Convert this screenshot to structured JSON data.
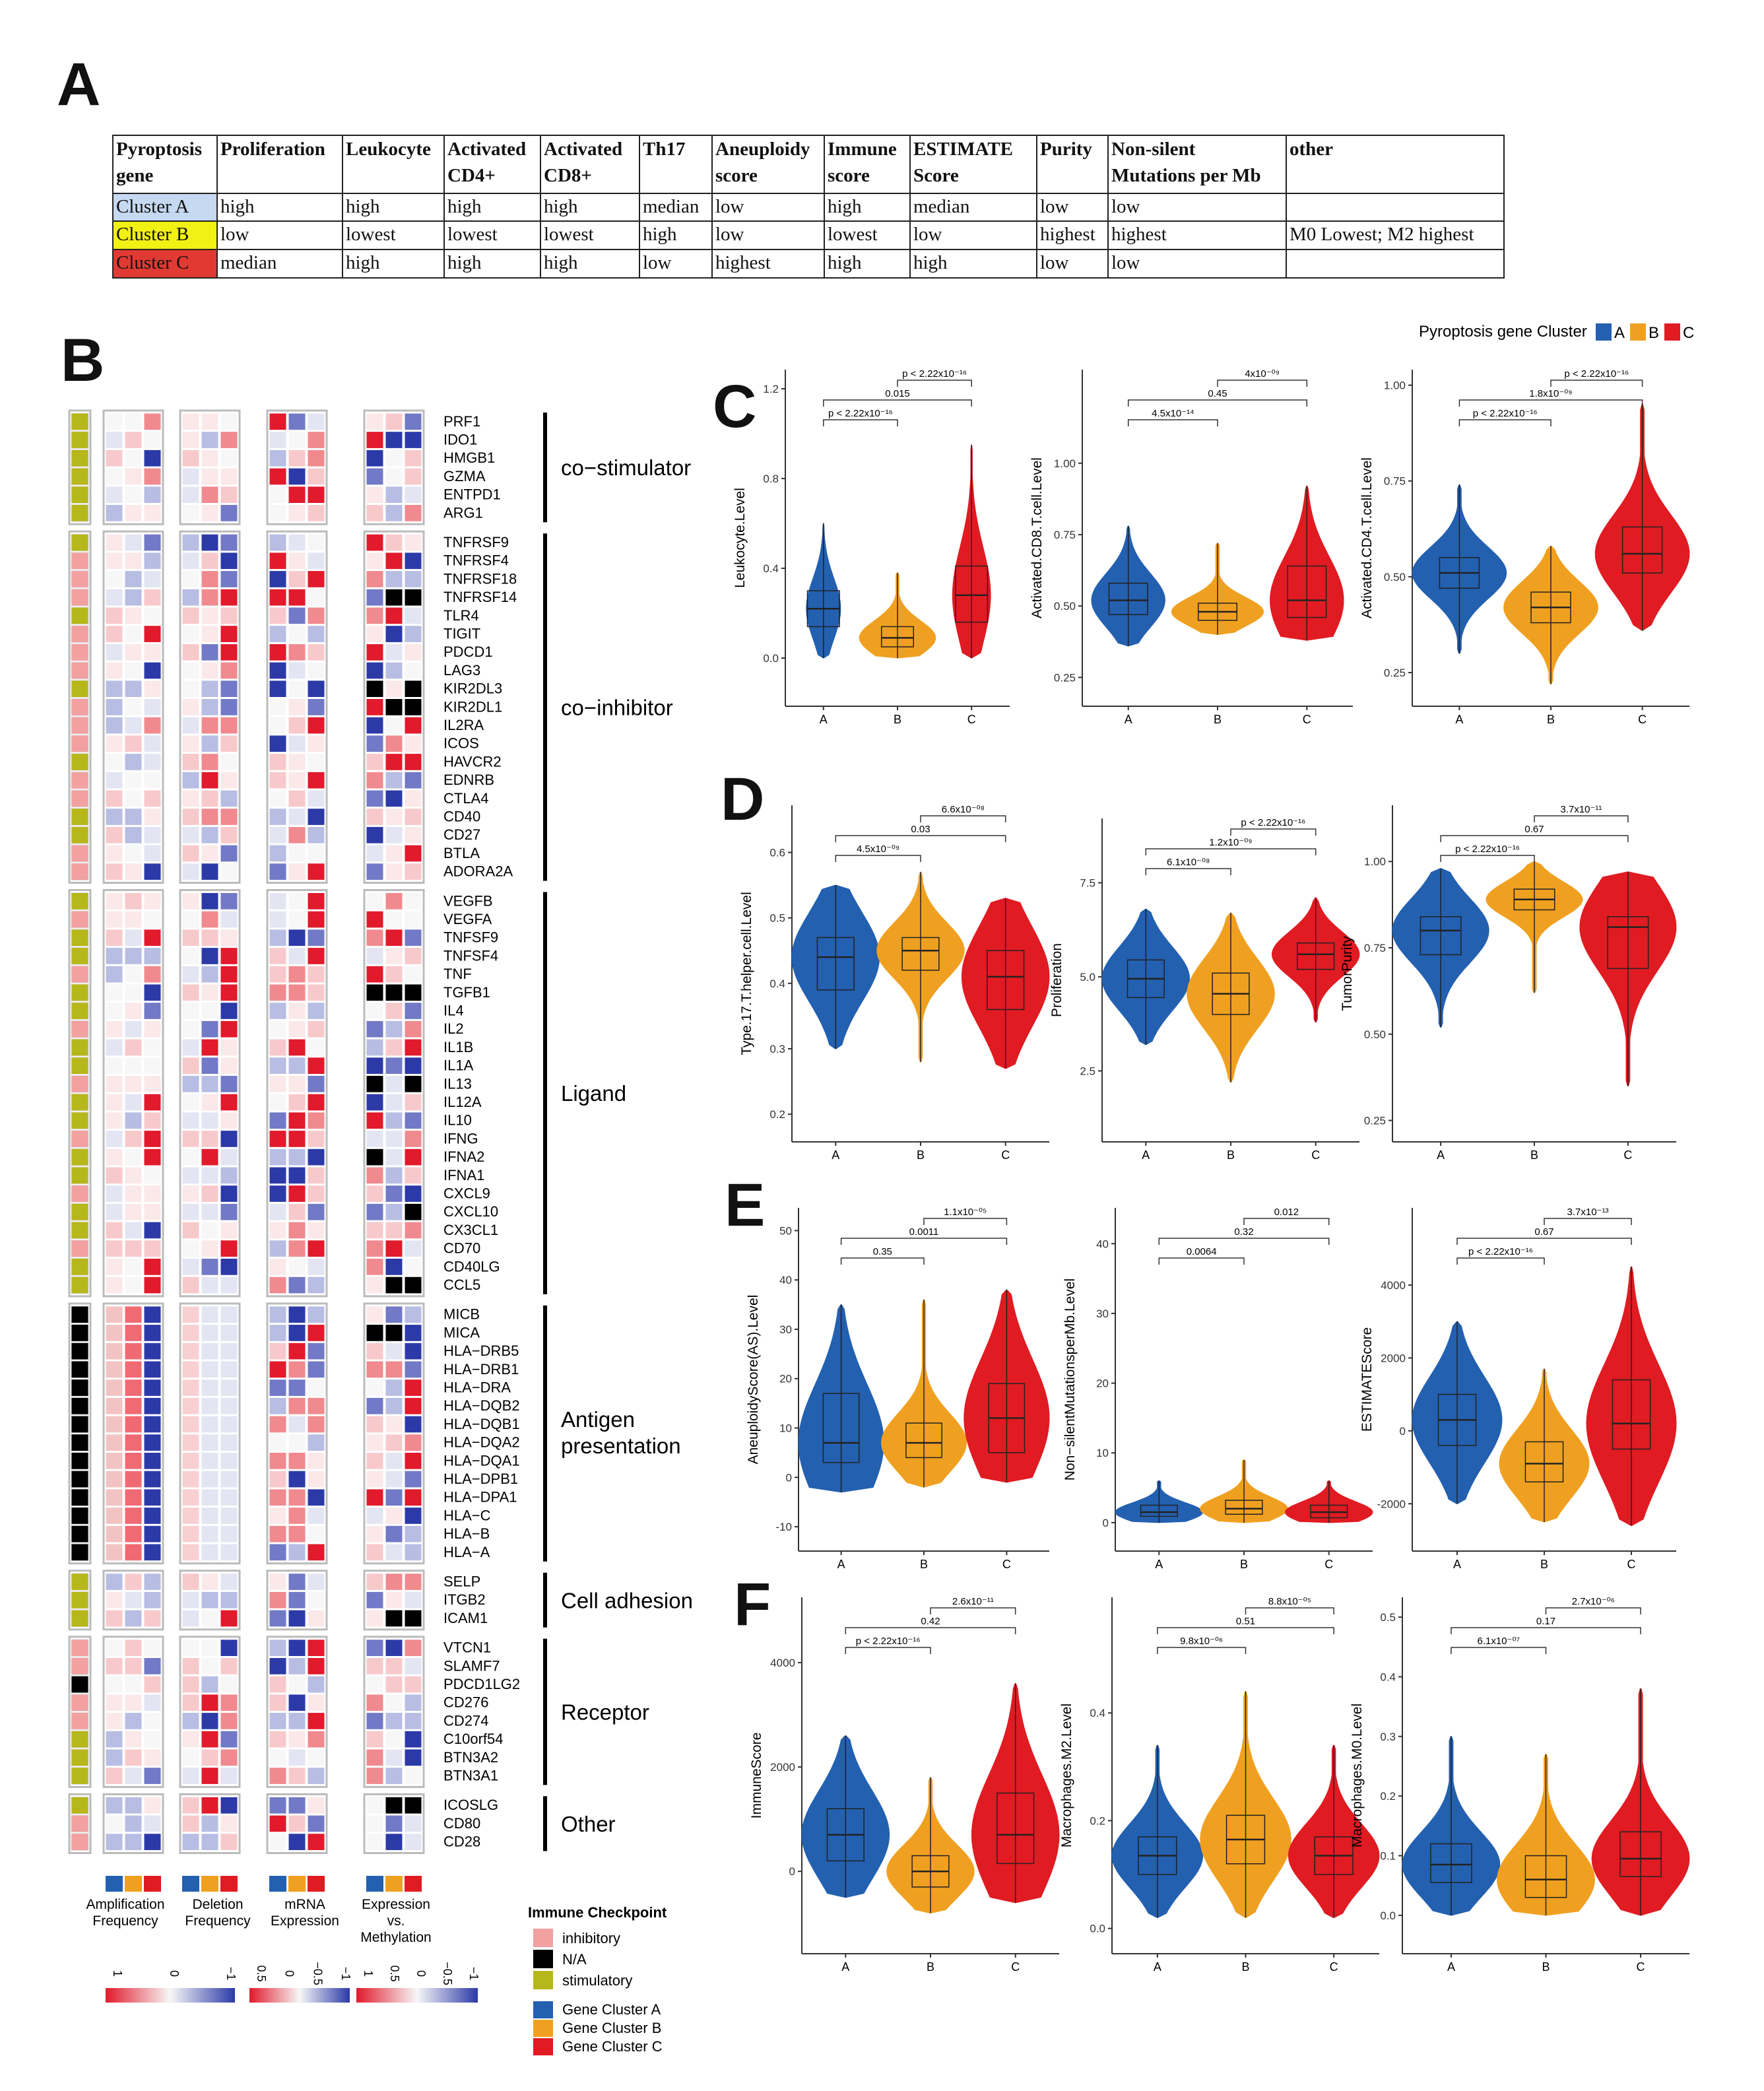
{
  "panel_labels": {
    "a": "A",
    "b": "B",
    "c": "C",
    "d": "D",
    "e": "E",
    "f": "F"
  },
  "table": {
    "headers": [
      [
        "Pyroptosis",
        "gene"
      ],
      [
        "Proliferation",
        ""
      ],
      [
        "Leukocyte",
        ""
      ],
      [
        "Activated",
        "CD4+"
      ],
      [
        "Activated",
        "CD8+"
      ],
      [
        "Th17",
        ""
      ],
      [
        "Aneuploidy",
        "score"
      ],
      [
        "Immune",
        "score"
      ],
      [
        "ESTIMATE",
        "Score"
      ],
      [
        "Purity",
        ""
      ],
      [
        "Non-silent",
        "Mutations per Mb"
      ],
      [
        "other",
        ""
      ]
    ],
    "rows": [
      {
        "color": "#c5d9f0",
        "cells": [
          "Cluster A",
          "high",
          "high",
          "high",
          "high",
          "median",
          "low",
          "high",
          "median",
          "low",
          "low",
          ""
        ]
      },
      {
        "color": "#f1f114",
        "cells": [
          "Cluster B",
          "low",
          "lowest",
          "lowest",
          "lowest",
          "high",
          "low",
          "lowest",
          "low",
          "highest",
          "highest",
          "M0 Lowest; M2 highest"
        ]
      },
      {
        "color": "#e03a32",
        "cells": [
          "Cluster C",
          "median",
          "high",
          "high",
          "high",
          "low",
          "highest",
          "high",
          "high",
          "low",
          "low",
          ""
        ]
      }
    ]
  },
  "heatmap": {
    "groups": [
      {
        "name": "co−stimulator",
        "genes": [
          "PRF1",
          "IDO1",
          "HMGB1",
          "GZMA",
          "ENTPD1",
          "ARG1"
        ]
      },
      {
        "name": "co−inhibitor",
        "genes": [
          "TNFRSF9",
          "TNFRSF4",
          "TNFRSF18",
          "TNFRSF14",
          "TLR4",
          "TIGIT",
          "PDCD1",
          "LAG3",
          "KIR2DL3",
          "KIR2DL1",
          "IL2RA",
          "ICOS",
          "HAVCR2",
          "EDNRB",
          "CTLA4",
          "CD40",
          "CD27",
          "BTLA",
          "ADORA2A"
        ]
      },
      {
        "name": "Ligand",
        "genes": [
          "VEGFB",
          "VEGFA",
          "TNFSF9",
          "TNFSF4",
          "TNF",
          "TGFB1",
          "IL4",
          "IL2",
          "IL1B",
          "IL1A",
          "IL13",
          "IL12A",
          "IL10",
          "IFNG",
          "IFNA2",
          "IFNA1",
          "CXCL9",
          "CXCL10",
          "CX3CL1",
          "CD70",
          "CD40LG",
          "CCL5"
        ]
      },
      {
        "name": "Antigen presentation",
        "genes": [
          "MICB",
          "MICA",
          "HLA−DRB5",
          "HLA−DRB1",
          "HLA−DRA",
          "HLA−DQB2",
          "HLA−DQB1",
          "HLA−DQA2",
          "HLA−DQA1",
          "HLA−DPB1",
          "HLA−DPA1",
          "HLA−C",
          "HLA−B",
          "HLA−A"
        ]
      },
      {
        "name": "Cell adhesion",
        "genes": [
          "SELP",
          "ITGB2",
          "ICAM1"
        ]
      },
      {
        "name": "Receptor",
        "genes": [
          "VTCN1",
          "SLAMF7",
          "PDCD1LG2",
          "CD276",
          "CD274",
          "C10orf54",
          "BTN3A2",
          "BTN3A1"
        ]
      },
      {
        "name": "Other",
        "genes": [
          "ICOSLG",
          "CD80",
          "CD28"
        ]
      }
    ],
    "column_labels": [
      [
        "Amplification",
        "Frequency"
      ],
      [
        "Deletion",
        "Frequency"
      ],
      [
        "mRNA",
        "Expression"
      ],
      [
        "Expression",
        "vs.",
        "Methylation"
      ]
    ],
    "scale_ticks": [
      [
        "1",
        "0",
        "−1"
      ],
      [
        "0.5",
        "0",
        "−0.5",
        "−1"
      ],
      [
        "1",
        "0.5",
        "0",
        "−0.5",
        "−1"
      ]
    ],
    "legend_title": "Immune Checkpoint",
    "checkpoint_legend": [
      {
        "label": "inhibitory",
        "color": "#f2a0a0"
      },
      {
        "label": "N/A",
        "color": "#000000"
      },
      {
        "label": "stimulatory",
        "color": "#b6b71a"
      }
    ],
    "cluster_legend": [
      {
        "label": "Gene Cluster A",
        "color": "#2360b0"
      },
      {
        "label": "Gene Cluster B",
        "color": "#f0a020"
      },
      {
        "label": "Gene Cluster C",
        "color": "#e01b22"
      }
    ]
  },
  "cluster_legend": {
    "title": "Pyroptosis gene Cluster",
    "items": [
      "A",
      "B",
      "C"
    ],
    "colors": [
      "#2360b0",
      "#f0a020",
      "#e01b22"
    ]
  },
  "chart_data": [
    {
      "type": "violin",
      "id": "c1",
      "panel": "C",
      "ylabel": "Leukocyte.Level",
      "categories": [
        "A",
        "B",
        "C"
      ],
      "ylim": [
        -0.15,
        1.25
      ],
      "yticks": [
        "0.0",
        "0.4",
        "0.8",
        "1.2"
      ],
      "ytick_values": [
        0,
        0.4,
        0.8,
        1.2
      ],
      "medians": [
        0.22,
        0.09,
        0.28
      ],
      "q1": [
        0.14,
        0.05,
        0.16
      ],
      "q3": [
        0.3,
        0.14,
        0.41
      ],
      "min": [
        0.0,
        0.0,
        0.0
      ],
      "max": [
        0.6,
        0.38,
        0.95
      ],
      "widths": [
        0.45,
        1.0,
        0.5
      ],
      "comparisons": [
        {
          "pair": [
            "A",
            "B"
          ],
          "label": "p < 2.22x10⁻¹⁶"
        },
        {
          "pair": [
            "A",
            "C"
          ],
          "label": "0.015"
        },
        {
          "pair": [
            "B",
            "C"
          ],
          "label": "p < 2.22x10⁻¹⁶"
        }
      ]
    },
    {
      "type": "violin",
      "id": "c2",
      "panel": "C",
      "ylabel": "Activated.CD8.T.cell.Level",
      "categories": [
        "A",
        "B",
        "C"
      ],
      "ylim": [
        0.2,
        1.3
      ],
      "yticks": [
        "0.25",
        "0.50",
        "0.75",
        "1.00"
      ],
      "ytick_values": [
        0.25,
        0.5,
        0.75,
        1.0
      ],
      "medians": [
        0.52,
        0.48,
        0.52
      ],
      "q1": [
        0.47,
        0.45,
        0.46
      ],
      "q3": [
        0.58,
        0.51,
        0.64
      ],
      "min": [
        0.36,
        0.4,
        0.38
      ],
      "max": [
        0.78,
        0.72,
        0.92
      ],
      "widths": [
        0.8,
        1.0,
        0.8
      ],
      "comparisons": [
        {
          "pair": [
            "A",
            "B"
          ],
          "label": "4.5x10⁻¹⁴"
        },
        {
          "pair": [
            "A",
            "C"
          ],
          "label": "0.45"
        },
        {
          "pair": [
            "B",
            "C"
          ],
          "label": "4x10⁻⁰⁹"
        }
      ]
    },
    {
      "type": "violin",
      "id": "c3",
      "panel": "C",
      "ylabel": "Activated.CD4.T.cell.Level",
      "categories": [
        "A",
        "B",
        "C"
      ],
      "ylim": [
        0.2,
        1.02
      ],
      "yticks": [
        "0.25",
        "0.50",
        "0.75",
        "1.00"
      ],
      "ytick_values": [
        0.25,
        0.5,
        0.75,
        1.0
      ],
      "medians": [
        0.51,
        0.42,
        0.56
      ],
      "q1": [
        0.47,
        0.38,
        0.51
      ],
      "q3": [
        0.55,
        0.46,
        0.63
      ],
      "min": [
        0.3,
        0.22,
        0.36
      ],
      "max": [
        0.74,
        0.58,
        0.95
      ],
      "widths": [
        1.0,
        1.0,
        1.0
      ],
      "comparisons": [
        {
          "pair": [
            "A",
            "B"
          ],
          "label": "p < 2.22x10⁻¹⁶"
        },
        {
          "pair": [
            "A",
            "C"
          ],
          "label": "1.8x10⁻⁰⁹"
        },
        {
          "pair": [
            "B",
            "C"
          ],
          "label": "p < 2.22x10⁻¹⁶"
        }
      ]
    },
    {
      "type": "violin",
      "id": "d1",
      "panel": "D",
      "ylabel": "Type.17.T.helper.cell.Level",
      "categories": [
        "A",
        "B",
        "C"
      ],
      "ylim": [
        0.18,
        0.66
      ],
      "yticks": [
        "0.2",
        "0.3",
        "0.4",
        "0.5",
        "0.6"
      ],
      "ytick_values": [
        0.2,
        0.3,
        0.4,
        0.5,
        0.6
      ],
      "medians": [
        0.44,
        0.45,
        0.41
      ],
      "q1": [
        0.39,
        0.42,
        0.36
      ],
      "q3": [
        0.47,
        0.47,
        0.45
      ],
      "min": [
        0.3,
        0.28,
        0.27
      ],
      "max": [
        0.55,
        0.57,
        0.53
      ],
      "widths": [
        1.0,
        1.0,
        1.0
      ],
      "comparisons": [
        {
          "pair": [
            "A",
            "B"
          ],
          "label": "4.5x10⁻⁰⁹"
        },
        {
          "pair": [
            "A",
            "C"
          ],
          "label": "0.03"
        },
        {
          "pair": [
            "B",
            "C"
          ],
          "label": "6.6x10⁻⁰⁸"
        }
      ]
    },
    {
      "type": "violin",
      "id": "d2",
      "panel": "D",
      "ylabel": "Proliferation",
      "categories": [
        "A",
        "B",
        "C"
      ],
      "ylim": [
        1.0,
        9.0
      ],
      "yticks": [
        "2.5",
        "5.0",
        "7.5"
      ],
      "ytick_values": [
        2.5,
        5.0,
        7.5
      ],
      "medians": [
        4.95,
        4.55,
        5.6
      ],
      "q1": [
        4.45,
        4.0,
        5.2
      ],
      "q3": [
        5.45,
        5.1,
        5.9
      ],
      "min": [
        3.2,
        2.2,
        3.8
      ],
      "max": [
        6.8,
        6.7,
        7.1
      ],
      "widths": [
        1.0,
        1.0,
        1.0
      ],
      "comparisons": [
        {
          "pair": [
            "A",
            "B"
          ],
          "label": "6.1x10⁻⁰⁸"
        },
        {
          "pair": [
            "A",
            "C"
          ],
          "label": "1.2x10⁻⁰⁹"
        },
        {
          "pair": [
            "B",
            "C"
          ],
          "label": "p < 2.22x10⁻¹⁶"
        }
      ]
    },
    {
      "type": "violin",
      "id": "d3",
      "panel": "D",
      "ylabel": "TumorPurity",
      "categories": [
        "A",
        "B",
        "C"
      ],
      "ylim": [
        0.23,
        1.14
      ],
      "yticks": [
        "0.25",
        "0.50",
        "0.75",
        "1.00"
      ],
      "ytick_values": [
        0.25,
        0.5,
        0.75,
        1.0
      ],
      "medians": [
        0.8,
        0.89,
        0.81
      ],
      "q1": [
        0.73,
        0.86,
        0.69
      ],
      "q3": [
        0.84,
        0.92,
        0.84
      ],
      "min": [
        0.52,
        0.62,
        0.35
      ],
      "max": [
        0.98,
        1.0,
        0.97
      ],
      "widths": [
        1.0,
        1.0,
        1.0
      ],
      "comparisons": [
        {
          "pair": [
            "A",
            "B"
          ],
          "label": "p < 2.22x10⁻¹⁶"
        },
        {
          "pair": [
            "A",
            "C"
          ],
          "label": "0.67"
        },
        {
          "pair": [
            "B",
            "C"
          ],
          "label": "3.7x10⁻¹¹"
        }
      ]
    },
    {
      "type": "violin",
      "id": "e1",
      "panel": "E",
      "ylabel": "AneuploidyScore(AS).Level",
      "categories": [
        "A",
        "B",
        "C"
      ],
      "ylim": [
        -12,
        53
      ],
      "yticks": [
        "-10",
        "0",
        "10",
        "20",
        "30",
        "40",
        "50"
      ],
      "ytick_values": [
        -10,
        0,
        10,
        20,
        30,
        40,
        50
      ],
      "medians": [
        7,
        7,
        12
      ],
      "q1": [
        3,
        4,
        5
      ],
      "q3": [
        17,
        11,
        19
      ],
      "min": [
        -3,
        -2,
        -1
      ],
      "max": [
        35,
        36,
        38
      ],
      "widths": [
        1.0,
        1.0,
        1.0
      ],
      "comparisons": [
        {
          "pair": [
            "A",
            "B"
          ],
          "label": "0.35"
        },
        {
          "pair": [
            "A",
            "C"
          ],
          "label": "0.0011"
        },
        {
          "pair": [
            "B",
            "C"
          ],
          "label": "1.1x10⁻⁰⁵"
        }
      ]
    },
    {
      "type": "violin",
      "id": "e2",
      "panel": "E",
      "ylabel": "Non−silentMutationsperMb.Level",
      "categories": [
        "A",
        "B",
        "C"
      ],
      "ylim": [
        -2,
        44
      ],
      "yticks": [
        "0",
        "10",
        "20",
        "30",
        "40"
      ],
      "ytick_values": [
        0,
        10,
        20,
        30,
        40
      ],
      "medians": [
        1.5,
        2.0,
        1.5
      ],
      "q1": [
        0.9,
        1.2,
        0.7
      ],
      "q3": [
        2.5,
        3.2,
        2.5
      ],
      "min": [
        0.0,
        0.0,
        0.0
      ],
      "max": [
        6.0,
        9.0,
        6.0
      ],
      "widths": [
        1.0,
        1.0,
        1.0
      ],
      "comparisons": [
        {
          "pair": [
            "A",
            "B"
          ],
          "label": "0.0064"
        },
        {
          "pair": [
            "A",
            "C"
          ],
          "label": "0.32"
        },
        {
          "pair": [
            "B",
            "C"
          ],
          "label": "0.012"
        }
      ]
    },
    {
      "type": "violin",
      "id": "e3",
      "panel": "E",
      "ylabel": "ESTIMATEScore",
      "categories": [
        "A",
        "B",
        "C"
      ],
      "ylim": [
        -2900,
        5900
      ],
      "yticks": [
        "-2000",
        "0",
        "2000",
        "4000"
      ],
      "ytick_values": [
        -2000,
        0,
        2000,
        4000
      ],
      "medians": [
        300,
        -900,
        200
      ],
      "q1": [
        -400,
        -1400,
        -500
      ],
      "q3": [
        1000,
        -300,
        1400
      ],
      "min": [
        -2000,
        -2500,
        -2600
      ],
      "max": [
        3000,
        1700,
        4500
      ],
      "widths": [
        1.0,
        1.0,
        1.0
      ],
      "comparisons": [
        {
          "pair": [
            "A",
            "B"
          ],
          "label": "p < 2.22x10⁻¹⁶"
        },
        {
          "pair": [
            "A",
            "C"
          ],
          "label": "0.67"
        },
        {
          "pair": [
            "B",
            "C"
          ],
          "label": "3.7x10⁻¹³"
        }
      ]
    },
    {
      "type": "violin",
      "id": "f1",
      "panel": "F",
      "ylabel": "ImmuneScore",
      "categories": [
        "A",
        "B",
        "C"
      ],
      "ylim": [
        -1300,
        5100
      ],
      "yticks": [
        "0",
        "2000",
        "4000"
      ],
      "ytick_values": [
        0,
        2000,
        4000
      ],
      "medians": [
        700,
        0,
        700
      ],
      "q1": [
        200,
        -300,
        150
      ],
      "q3": [
        1200,
        300,
        1500
      ],
      "min": [
        -500,
        -800,
        -600
      ],
      "max": [
        2600,
        1800,
        3600
      ],
      "widths": [
        1.0,
        1.0,
        1.0
      ],
      "comparisons": [
        {
          "pair": [
            "A",
            "B"
          ],
          "label": "p < 2.22x10⁻¹⁶"
        },
        {
          "pair": [
            "A",
            "C"
          ],
          "label": "0.42"
        },
        {
          "pair": [
            "B",
            "C"
          ],
          "label": "2.6x10⁻¹¹"
        }
      ]
    },
    {
      "type": "violin",
      "id": "f2",
      "panel": "F",
      "ylabel": "Macrophages.M2.Level",
      "categories": [
        "A",
        "B",
        "C"
      ],
      "ylim": [
        -0.02,
        0.6
      ],
      "yticks": [
        "0.0",
        "0.2",
        "0.4"
      ],
      "ytick_values": [
        0.0,
        0.2,
        0.4
      ],
      "medians": [
        0.135,
        0.165,
        0.135
      ],
      "q1": [
        0.1,
        0.12,
        0.1
      ],
      "q3": [
        0.17,
        0.21,
        0.17
      ],
      "min": [
        0.02,
        0.02,
        0.02
      ],
      "max": [
        0.34,
        0.44,
        0.34
      ],
      "widths": [
        1.0,
        1.0,
        1.0
      ],
      "comparisons": [
        {
          "pair": [
            "A",
            "B"
          ],
          "label": "9.8x10⁻⁰⁶"
        },
        {
          "pair": [
            "A",
            "C"
          ],
          "label": "0.51"
        },
        {
          "pair": [
            "B",
            "C"
          ],
          "label": "8.8x10⁻⁰⁵"
        }
      ]
    },
    {
      "type": "violin",
      "id": "f3",
      "panel": "F",
      "ylabel": "Macrophages.M0.Level",
      "categories": [
        "A",
        "B",
        "C"
      ],
      "ylim": [
        -0.04,
        0.52
      ],
      "yticks": [
        "0.0",
        "0.1",
        "0.2",
        "0.3",
        "0.4",
        "0.5"
      ],
      "ytick_values": [
        0.0,
        0.1,
        0.2,
        0.3,
        0.4,
        0.5
      ],
      "medians": [
        0.085,
        0.06,
        0.095
      ],
      "q1": [
        0.055,
        0.03,
        0.065
      ],
      "q3": [
        0.12,
        0.1,
        0.14
      ],
      "min": [
        0.0,
        0.0,
        0.0
      ],
      "max": [
        0.3,
        0.27,
        0.38
      ],
      "widths": [
        1.0,
        1.0,
        1.0
      ],
      "comparisons": [
        {
          "pair": [
            "A",
            "B"
          ],
          "label": "6.1x10⁻⁰⁷"
        },
        {
          "pair": [
            "A",
            "C"
          ],
          "label": "0.17"
        },
        {
          "pair": [
            "B",
            "C"
          ],
          "label": "2.7x10⁻⁰⁶"
        }
      ]
    }
  ]
}
